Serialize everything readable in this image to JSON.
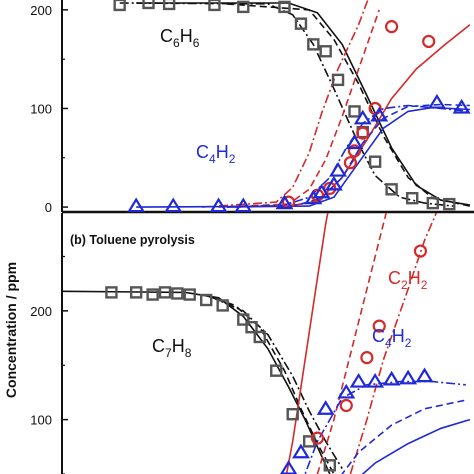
{
  "ylabel": "Concentration / ppm",
  "colors": {
    "black": "#111111",
    "red": "#d42a2a",
    "blue": "#1f2ad6",
    "gray": "#555555"
  },
  "chart_data": [
    {
      "type": "scatter",
      "title": "",
      "ylabel": "Concentration / ppm",
      "ylim": [
        -5,
        210
      ],
      "yticks": [
        0,
        100,
        200
      ],
      "species_labels": [
        {
          "name": "C6H6",
          "base": "C",
          "parts": [
            [
              "C",
              "6"
            ],
            [
              "H",
              "6"
            ]
          ],
          "color": "black"
        },
        {
          "name": "C4H2",
          "parts": [
            [
              "C",
              "4"
            ],
            [
              "H",
              "2"
            ]
          ],
          "color": "blue"
        }
      ],
      "series": [
        {
          "name": "C6H6",
          "marker": "square",
          "color": "black",
          "points": [
            [
              0.14,
              205
            ],
            [
              0.21,
              207
            ],
            [
              0.26,
              206
            ],
            [
              0.37,
              205
            ],
            [
              0.44,
              203
            ],
            [
              0.54,
              203
            ],
            [
              0.58,
              186
            ],
            [
              0.61,
              165
            ],
            [
              0.64,
              158
            ],
            [
              0.67,
              129
            ],
            [
              0.71,
              97
            ],
            [
              0.73,
              76
            ],
            [
              0.76,
              46
            ],
            [
              0.8,
              18
            ],
            [
              0.85,
              9
            ],
            [
              0.9,
              4
            ],
            [
              0.94,
              3
            ]
          ]
        },
        {
          "name": "C2H2",
          "marker": "circle",
          "color": "red",
          "points": [
            [
              0.55,
              5
            ],
            [
              0.62,
              12
            ],
            [
              0.65,
              19
            ],
            [
              0.7,
              45
            ],
            [
              0.71,
              57
            ],
            [
              0.73,
              75
            ],
            [
              0.76,
              100
            ],
            [
              0.8,
              183
            ],
            [
              0.89,
              168
            ]
          ]
        },
        {
          "name": "C4H2",
          "marker": "triangle",
          "color": "blue",
          "points": [
            [
              0.18,
              1
            ],
            [
              0.27,
              1
            ],
            [
              0.38,
              1
            ],
            [
              0.44,
              1
            ],
            [
              0.54,
              4
            ],
            [
              0.61,
              9
            ],
            [
              0.63,
              15
            ],
            [
              0.66,
              23
            ],
            [
              0.67,
              37
            ],
            [
              0.71,
              65
            ],
            [
              0.73,
              90
            ],
            [
              0.77,
              93
            ],
            [
              0.91,
              106
            ],
            [
              0.97,
              101
            ]
          ]
        }
      ],
      "model_curves": [
        {
          "color": "black",
          "style": "solid",
          "points": [
            [
              0.18,
              207
            ],
            [
              0.55,
              207
            ],
            [
              0.62,
              197
            ],
            [
              0.68,
              165
            ],
            [
              0.74,
              113
            ],
            [
              0.8,
              60
            ],
            [
              0.86,
              22
            ],
            [
              0.92,
              7
            ],
            [
              0.99,
              2
            ]
          ]
        },
        {
          "color": "black",
          "style": "dashdot",
          "points": [
            [
              0.14,
              207
            ],
            [
              0.5,
              206
            ],
            [
              0.56,
              195
            ],
            [
              0.61,
              165
            ],
            [
              0.66,
              120
            ],
            [
              0.72,
              64
            ],
            [
              0.76,
              32
            ],
            [
              0.82,
              10
            ],
            [
              0.88,
              4
            ],
            [
              0.95,
              1
            ]
          ]
        },
        {
          "color": "black",
          "style": "dashed",
          "points": [
            [
              0.4,
              206
            ],
            [
              0.6,
              200
            ],
            [
              0.66,
              170
            ],
            [
              0.72,
              125
            ],
            [
              0.78,
              72
            ],
            [
              0.84,
              30
            ],
            [
              0.9,
              9
            ],
            [
              0.99,
              1
            ]
          ]
        },
        {
          "color": "red",
          "style": "dashdot",
          "points": [
            [
              0.34,
              0
            ],
            [
              0.52,
              5
            ],
            [
              0.56,
              20
            ],
            [
              0.6,
              55
            ],
            [
              0.63,
              95
            ],
            [
              0.67,
              140
            ],
            [
              0.72,
              185
            ],
            [
              0.76,
              230
            ]
          ]
        },
        {
          "color": "red",
          "style": "dashed",
          "points": [
            [
              0.38,
              0
            ],
            [
              0.55,
              3
            ],
            [
              0.6,
              18
            ],
            [
              0.64,
              48
            ],
            [
              0.68,
              92
            ],
            [
              0.72,
              140
            ],
            [
              0.77,
              200
            ]
          ]
        },
        {
          "color": "red",
          "style": "solid",
          "points": [
            [
              0.4,
              0
            ],
            [
              0.55,
              1
            ],
            [
              0.62,
              6
            ],
            [
              0.68,
              30
            ],
            [
              0.74,
              68
            ],
            [
              0.8,
              110
            ],
            [
              0.86,
              140
            ],
            [
              0.93,
              165
            ],
            [
              0.99,
              185
            ]
          ]
        },
        {
          "color": "blue",
          "style": "dashdot",
          "points": [
            [
              0.4,
              0
            ],
            [
              0.54,
              2
            ],
            [
              0.6,
              10
            ],
            [
              0.65,
              30
            ],
            [
              0.69,
              60
            ],
            [
              0.73,
              85
            ],
            [
              0.78,
              100
            ],
            [
              0.84,
              103
            ],
            [
              0.92,
              100
            ],
            [
              0.99,
              97
            ]
          ]
        },
        {
          "color": "blue",
          "style": "dashed",
          "points": [
            [
              0.42,
              0
            ],
            [
              0.57,
              2
            ],
            [
              0.63,
              9
            ],
            [
              0.68,
              30
            ],
            [
              0.73,
              65
            ],
            [
              0.78,
              90
            ],
            [
              0.84,
              102
            ],
            [
              0.92,
              104
            ],
            [
              0.99,
              103
            ]
          ]
        },
        {
          "color": "blue",
          "style": "solid",
          "points": [
            [
              0.18,
              0
            ],
            [
              0.6,
              1
            ],
            [
              0.66,
              10
            ],
            [
              0.72,
              45
            ],
            [
              0.78,
              80
            ],
            [
              0.84,
              97
            ],
            [
              0.9,
              101
            ],
            [
              0.99,
              99
            ]
          ]
        }
      ]
    },
    {
      "type": "scatter",
      "title": "(b) Toluene pyrolysis",
      "ylabel": "Concentration / ppm",
      "ylim": [
        50,
        290
      ],
      "yticks": [
        100,
        200
      ],
      "species_labels": [
        {
          "name": "C2H2",
          "parts": [
            [
              "C",
              "2"
            ],
            [
              "H",
              "2"
            ]
          ],
          "color": "red"
        },
        {
          "name": "C4H2",
          "parts": [
            [
              "C",
              "4"
            ],
            [
              "H",
              "2"
            ]
          ],
          "color": "blue"
        },
        {
          "name": "C7H8",
          "parts": [
            [
              "C",
              "7"
            ],
            [
              "H",
              "8"
            ]
          ],
          "color": "black"
        }
      ],
      "series": [
        {
          "name": "C7H8",
          "marker": "square",
          "color": "black",
          "points": [
            [
              0.12,
              217
            ],
            [
              0.18,
              217
            ],
            [
              0.22,
              215
            ],
            [
              0.25,
              217
            ],
            [
              0.28,
              216
            ],
            [
              0.31,
              215
            ],
            [
              0.35,
              210
            ],
            [
              0.39,
              205
            ],
            [
              0.44,
              192
            ],
            [
              0.46,
              185
            ],
            [
              0.48,
              176
            ],
            [
              0.52,
              145
            ],
            [
              0.56,
              105
            ],
            [
              0.6,
              80
            ],
            [
              0.65,
              58
            ]
          ]
        },
        {
          "name": "C2H2",
          "marker": "circle",
          "color": "red",
          "points": [
            [
              0.62,
              83
            ],
            [
              0.69,
              113
            ],
            [
              0.74,
              157
            ],
            [
              0.77,
              186
            ],
            [
              0.87,
              255
            ]
          ]
        },
        {
          "name": "C4H2",
          "marker": "triangle",
          "color": "blue",
          "points": [
            [
              0.55,
              55
            ],
            [
              0.58,
              70
            ],
            [
              0.64,
              110
            ],
            [
              0.69,
              125
            ],
            [
              0.72,
              135
            ],
            [
              0.76,
              135
            ],
            [
              0.8,
              137
            ],
            [
              0.84,
              138
            ],
            [
              0.88,
              140
            ]
          ]
        }
      ],
      "model_curves": [
        {
          "color": "black",
          "style": "solid",
          "points": [
            [
              0.0,
              218
            ],
            [
              0.3,
              217
            ],
            [
              0.38,
              212
            ],
            [
              0.44,
              195
            ],
            [
              0.5,
              165
            ],
            [
              0.55,
              130
            ],
            [
              0.59,
              100
            ],
            [
              0.62,
              75
            ],
            [
              0.65,
              50
            ]
          ]
        },
        {
          "color": "black",
          "style": "dashed",
          "points": [
            [
              0.35,
              214
            ],
            [
              0.42,
              205
            ],
            [
              0.48,
              185
            ],
            [
              0.54,
              145
            ],
            [
              0.58,
              110
            ],
            [
              0.62,
              78
            ],
            [
              0.66,
              50
            ]
          ]
        },
        {
          "color": "black",
          "style": "dashdot",
          "points": [
            [
              0.36,
              213
            ],
            [
              0.44,
              200
            ],
            [
              0.5,
              178
            ],
            [
              0.56,
              140
            ],
            [
              0.6,
              108
            ],
            [
              0.64,
              80
            ],
            [
              0.68,
              55
            ]
          ]
        },
        {
          "color": "red",
          "style": "solid",
          "points": [
            [
              0.54,
              40
            ],
            [
              0.56,
              80
            ],
            [
              0.58,
              130
            ],
            [
              0.6,
              180
            ],
            [
              0.62,
              230
            ],
            [
              0.64,
              280
            ],
            [
              0.65,
              300
            ]
          ]
        },
        {
          "color": "red",
          "style": "dashed",
          "points": [
            [
              0.62,
              50
            ],
            [
              0.66,
              100
            ],
            [
              0.7,
              160
            ],
            [
              0.74,
              220
            ],
            [
              0.78,
              280
            ],
            [
              0.8,
              310
            ]
          ]
        },
        {
          "color": "red",
          "style": "dashdot",
          "points": [
            [
              0.7,
              50
            ],
            [
              0.74,
              100
            ],
            [
              0.78,
              155
            ],
            [
              0.84,
              220
            ],
            [
              0.88,
              265
            ],
            [
              0.92,
              300
            ]
          ]
        },
        {
          "color": "blue",
          "style": "dashdot",
          "points": [
            [
              0.58,
              40
            ],
            [
              0.62,
              80
            ],
            [
              0.68,
              120
            ],
            [
              0.74,
              132
            ],
            [
              0.82,
              135
            ],
            [
              0.9,
              135
            ],
            [
              0.98,
              132
            ]
          ]
        },
        {
          "color": "blue",
          "style": "dashed",
          "points": [
            [
              0.66,
              40
            ],
            [
              0.72,
              70
            ],
            [
              0.8,
              95
            ],
            [
              0.88,
              110
            ],
            [
              0.98,
              118
            ]
          ]
        },
        {
          "color": "blue",
          "style": "solid",
          "points": [
            [
              0.7,
              40
            ],
            [
              0.76,
              60
            ],
            [
              0.84,
              78
            ],
            [
              0.92,
              92
            ],
            [
              0.99,
              100
            ]
          ]
        }
      ]
    }
  ]
}
